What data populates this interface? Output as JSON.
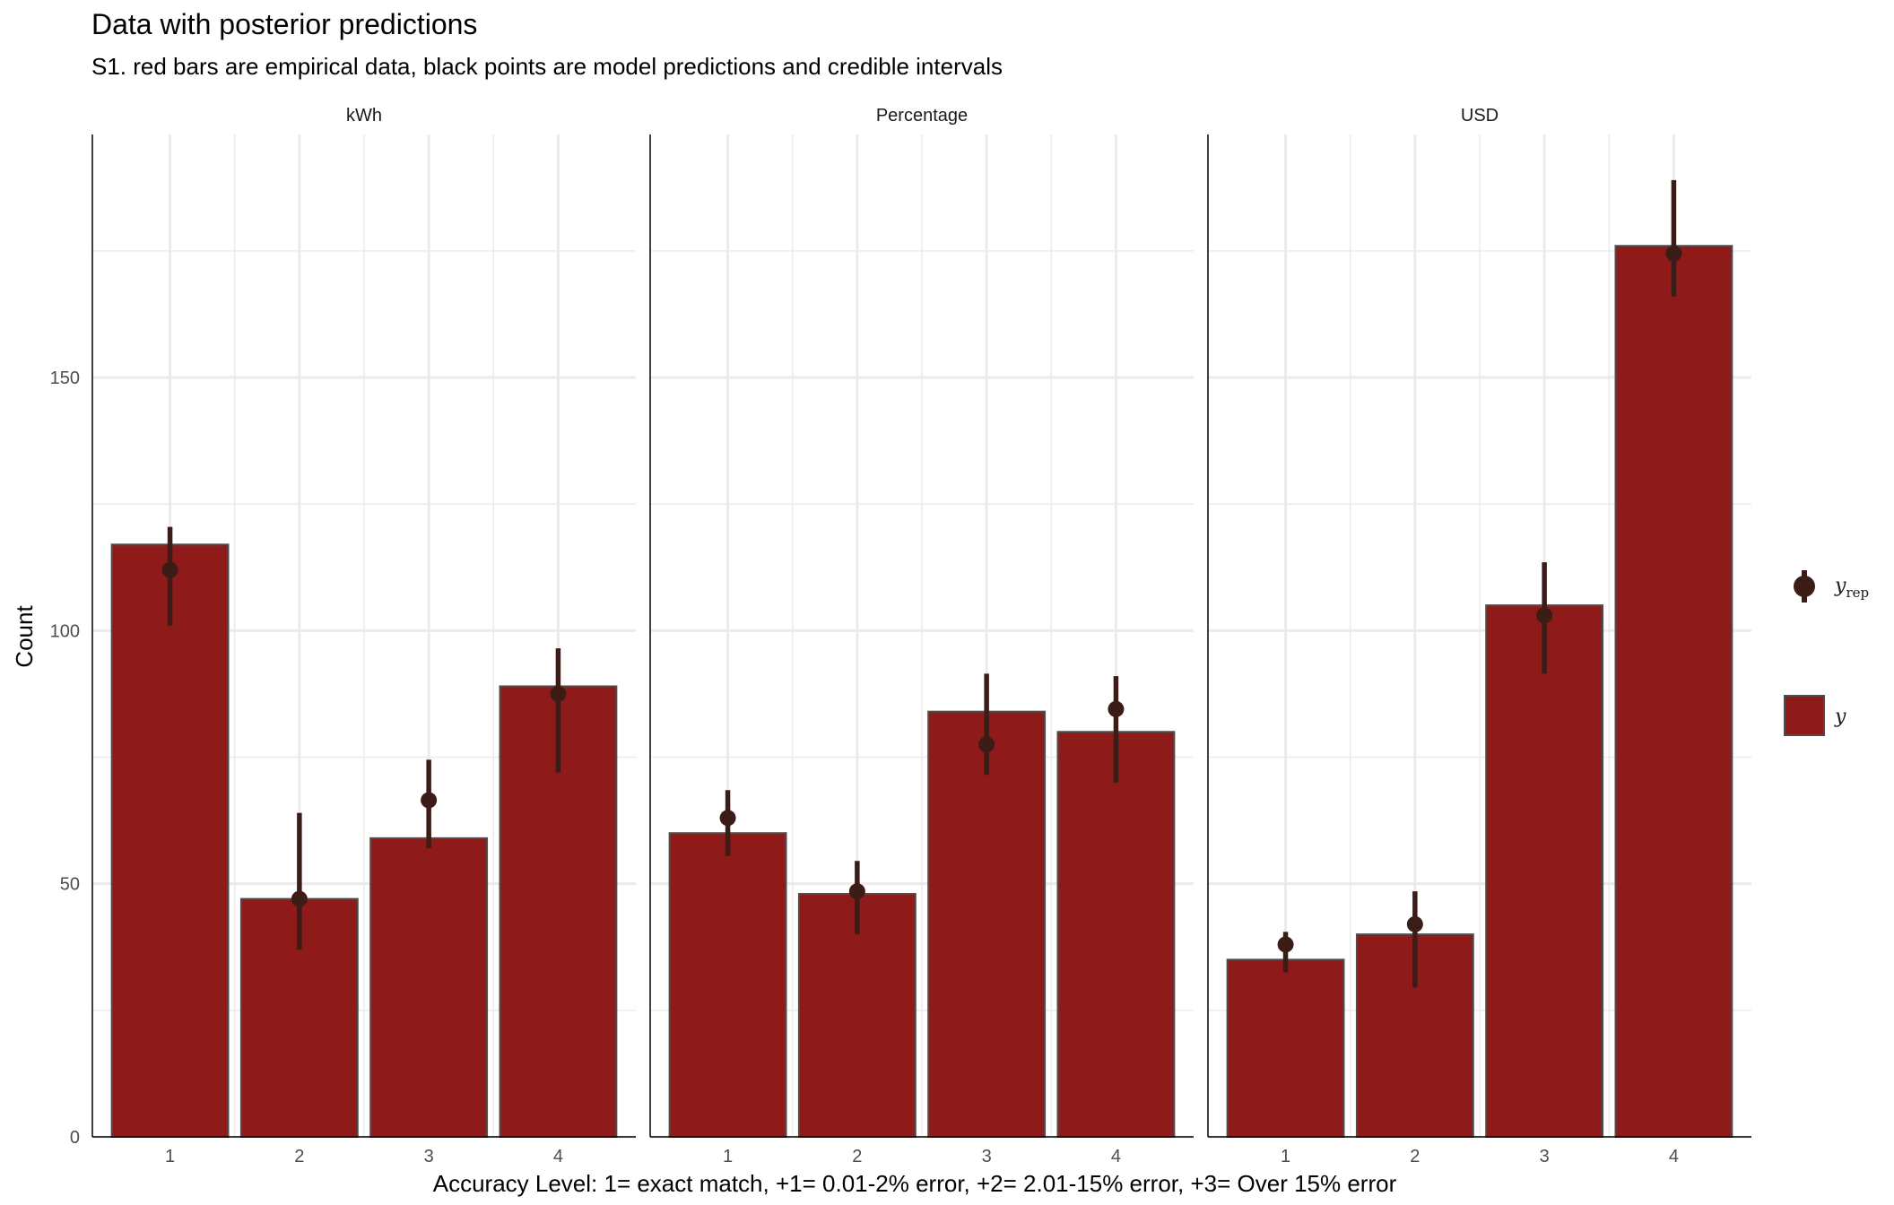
{
  "chart_data": {
    "type": "bar",
    "title": "Data with posterior predictions",
    "subtitle": "S1. red bars are empirical data, black points are model predictions and credible intervals",
    "xlabel": "Accuracy Level: 1= exact match,   +1= 0.01-2% error, +2= 2.01-15% error, +3= Over 15% error",
    "ylabel": "Count",
    "ylim": [
      0,
      198
    ],
    "yticks": [
      "0",
      "50",
      "100",
      "150"
    ],
    "categories": [
      "1",
      "2",
      "3",
      "4"
    ],
    "grid": true,
    "legend_position": "right",
    "legend": {
      "yrep_main": "y",
      "yrep_sub": "rep",
      "y": "y"
    },
    "colors": {
      "bar_fill": "#8E1A1A",
      "bar_outline": "#4D4D4D",
      "point": "#3B1C16",
      "grid": "#EBEBEB"
    },
    "panels": [
      {
        "label": "kWh",
        "y": [
          117,
          47,
          59,
          89
        ],
        "yrep": [
          112,
          47,
          66.5,
          87.5
        ],
        "yrep_low": [
          101,
          37,
          57,
          72
        ],
        "yrep_high": [
          120.5,
          64,
          74.5,
          96.5
        ]
      },
      {
        "label": "Percentage",
        "y": [
          60,
          48,
          84,
          80
        ],
        "yrep": [
          63,
          48.5,
          77.5,
          84.5
        ],
        "yrep_low": [
          55.5,
          40,
          71.5,
          70
        ],
        "yrep_high": [
          68.5,
          54.5,
          91.5,
          91
        ]
      },
      {
        "label": "USD",
        "y": [
          35,
          40,
          105,
          176
        ],
        "yrep": [
          38,
          42,
          103,
          174.5
        ],
        "yrep_low": [
          32.5,
          29.5,
          91.5,
          166
        ],
        "yrep_high": [
          40.5,
          48.5,
          113.5,
          189
        ]
      }
    ]
  }
}
